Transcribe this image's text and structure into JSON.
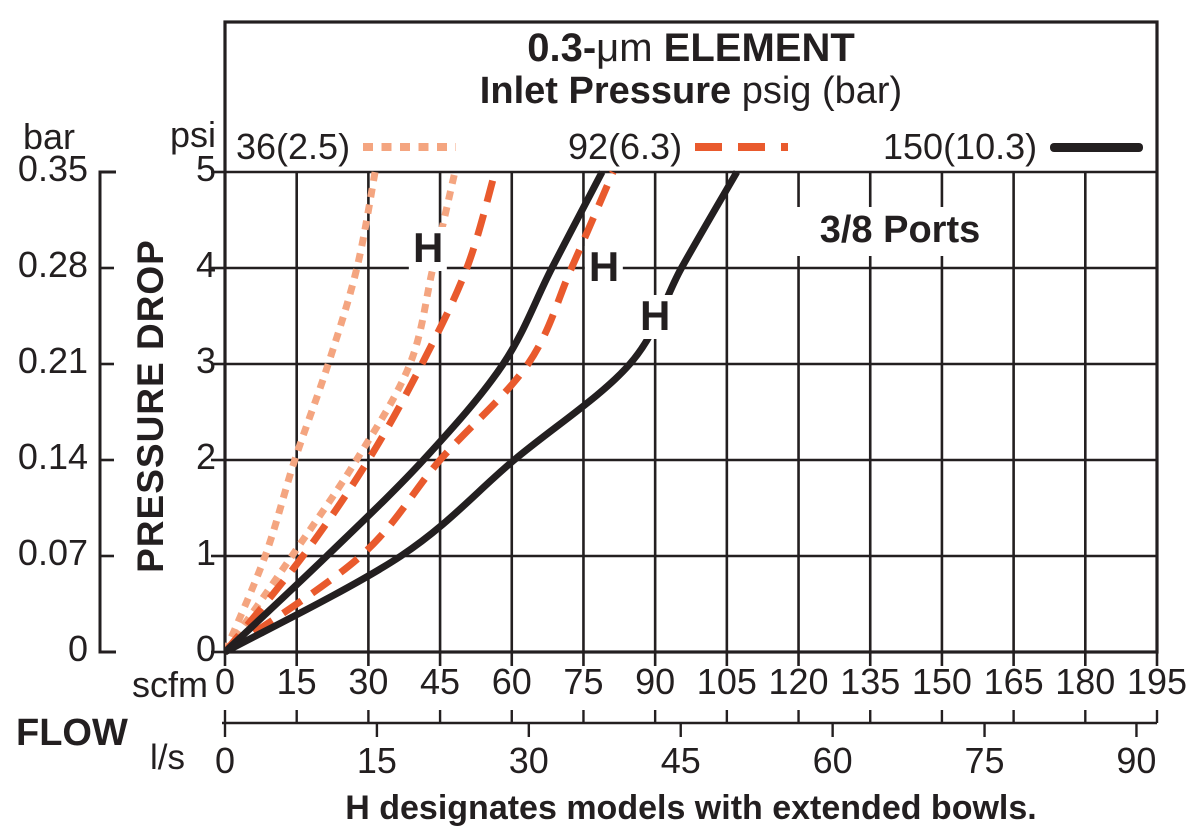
{
  "chart_data": {
    "type": "line",
    "title": "0.3-μm ELEMENT",
    "subtitle": "Inlet Pressure psig (bar)",
    "title_parts": {
      "bold1": "0.3-",
      "mu": "μm",
      "bold2": " ELEMENT"
    },
    "subtitle_parts": {
      "bold": "Inlet Pressure",
      "rest": " psig (bar)"
    },
    "ylabel": "PRESSURE DROP",
    "xlabel": "FLOW",
    "grid": true,
    "legend_position": "top",
    "colors": {
      "line_36": "#F4A580",
      "line_92": "#E95A2D",
      "line_150": "#231F20",
      "grid": "#231F20"
    },
    "legend": [
      {
        "label": "36(2.5)",
        "style": "dotted",
        "color": "#F4A580"
      },
      {
        "label": "92(6.3)",
        "style": "dashed",
        "color": "#E95A2D"
      },
      {
        "label": "150(10.3)",
        "style": "solid",
        "color": "#231F20"
      }
    ],
    "y_axis_psi": {
      "header": "psi",
      "ticks": [
        "5",
        "4",
        "3",
        "2",
        "1",
        "0"
      ],
      "range": [
        0,
        5
      ]
    },
    "y_axis_bar": {
      "header": "bar",
      "ticks": [
        "0.35",
        "0.28",
        "0.21",
        "0.14",
        "0.07",
        "0"
      ],
      "range": [
        0,
        0.35
      ]
    },
    "x_axis_scfm": {
      "unit": "scfm",
      "ticks": [
        0,
        15,
        30,
        45,
        60,
        75,
        90,
        105,
        120,
        135,
        150,
        165,
        180,
        195
      ],
      "range": [
        0,
        195
      ]
    },
    "x_axis_ls": {
      "unit": "l/s",
      "ticks": [
        0,
        15,
        30,
        45,
        60,
        75,
        90
      ],
      "range": [
        0,
        90
      ]
    },
    "series": [
      {
        "name": "36(2.5) standard",
        "inlet_pressure_psig": 36,
        "inlet_pressure_bar": 2.5,
        "model": "standard",
        "style": "dotted",
        "color": "#F4A580",
        "points_scfm_psi": [
          [
            0,
            0
          ],
          [
            8.4,
            1
          ],
          [
            14.6,
            2
          ],
          [
            21.6,
            3
          ],
          [
            27.6,
            4
          ],
          [
            31.4,
            5
          ]
        ]
      },
      {
        "name": "36(2.5) H",
        "inlet_pressure_psig": 36,
        "inlet_pressure_bar": 2.5,
        "model": "H",
        "style": "dotted",
        "color": "#F4A580",
        "points_scfm_psi": [
          [
            0,
            0
          ],
          [
            14.0,
            1
          ],
          [
            27.5,
            2
          ],
          [
            38.7,
            3
          ],
          [
            43.5,
            4
          ],
          [
            48.1,
            5
          ]
        ]
      },
      {
        "name": "92(6.3) standard",
        "inlet_pressure_psig": 92,
        "inlet_pressure_bar": 6.3,
        "model": "standard",
        "style": "dashed",
        "color": "#E95A2D",
        "points_scfm_psi": [
          [
            0,
            0
          ],
          [
            16.3,
            1
          ],
          [
            30.0,
            2
          ],
          [
            41.2,
            3
          ],
          [
            50.6,
            4
          ],
          [
            56.5,
            5
          ]
        ]
      },
      {
        "name": "92(6.3) H",
        "inlet_pressure_psig": 92,
        "inlet_pressure_bar": 6.3,
        "model": "H",
        "style": "dashed",
        "color": "#E95A2D",
        "points_scfm_psi": [
          [
            0,
            0
          ],
          [
            28.4,
            1
          ],
          [
            45.0,
            2
          ],
          [
            63.4,
            3
          ],
          [
            72.5,
            4
          ],
          [
            81.2,
            5
          ]
        ]
      },
      {
        "name": "150(10.3) standard",
        "inlet_pressure_psig": 150,
        "inlet_pressure_bar": 10.3,
        "model": "standard",
        "style": "solid",
        "color": "#231F20",
        "points_scfm_psi": [
          [
            0,
            0
          ],
          [
            21.3,
            1
          ],
          [
            41.5,
            2
          ],
          [
            58.2,
            3
          ],
          [
            68.4,
            4
          ],
          [
            78.9,
            5
          ]
        ]
      },
      {
        "name": "150(10.3) H",
        "inlet_pressure_psig": 150,
        "inlet_pressure_bar": 10.3,
        "model": "H",
        "style": "solid",
        "color": "#231F20",
        "points_scfm_psi": [
          [
            0,
            0
          ],
          [
            36.8,
            1
          ],
          [
            60.5,
            2
          ],
          [
            84.7,
            3
          ],
          [
            95.5,
            4
          ],
          [
            107.1,
            5
          ]
        ]
      }
    ],
    "annotations": {
      "ports": "3/8 Ports",
      "caption": "H designates models with extended bowls.",
      "h_markers": [
        {
          "text": "H",
          "scfm": 42.5,
          "psi": 4.2
        },
        {
          "text": "H",
          "scfm": 79.3,
          "psi": 4.0
        },
        {
          "text": "H",
          "scfm": 90.0,
          "psi": 3.49
        }
      ]
    }
  }
}
